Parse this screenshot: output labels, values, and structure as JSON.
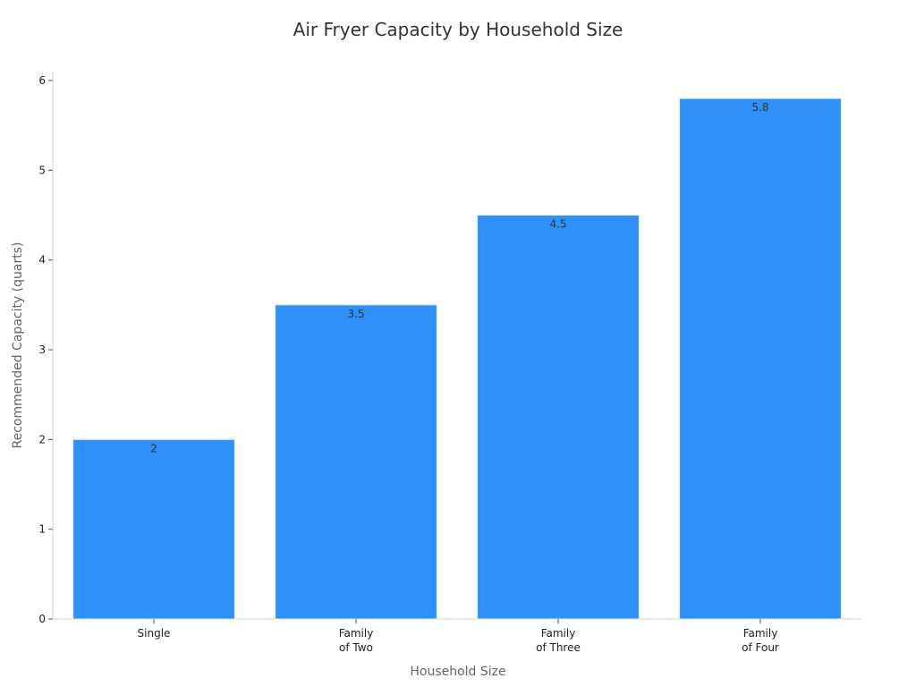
{
  "chart_data": {
    "type": "bar",
    "title": "Air Fryer Capacity by Household Size",
    "xlabel": "Household Size",
    "ylabel": "Recommended Capacity (quarts)",
    "categories": [
      [
        "Single"
      ],
      [
        "Family",
        "of Two"
      ],
      [
        "Family",
        "of Three"
      ],
      [
        "Family",
        "of Four"
      ]
    ],
    "values": [
      2,
      3.5,
      4.5,
      5.8
    ],
    "data_labels": [
      "2",
      "3.5",
      "4.5",
      "5.8"
    ],
    "ylim": [
      0,
      6
    ],
    "yticks": [
      0,
      1,
      2,
      3,
      4,
      5,
      6
    ],
    "grid": false,
    "bar_color": "#2F91F8",
    "bar_edge_color": "#DCEBFC"
  }
}
